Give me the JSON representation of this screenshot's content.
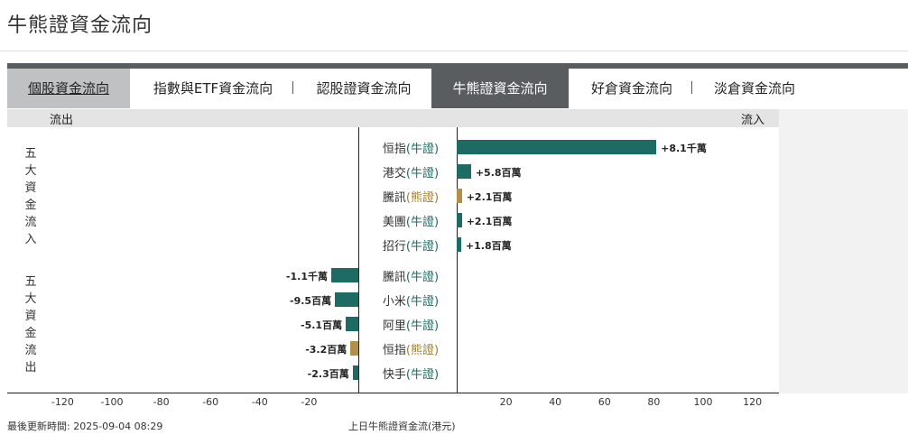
{
  "page": {
    "title": "牛熊證資金流向"
  },
  "tabs": [
    {
      "label": "個股資金流向"
    },
    {
      "label": "指數與ETF資金流向"
    },
    {
      "label": "認股證資金流向"
    },
    {
      "label": "牛熊證資金流向"
    },
    {
      "label": "好倉資金流向"
    },
    {
      "label": "淡倉資金流向"
    }
  ],
  "tab_separator": "|",
  "header": {
    "outflow": "流出",
    "inflow": "流入"
  },
  "groups": {
    "inflow_title": "五大資金流入",
    "outflow_title": "五大資金流出"
  },
  "colors": {
    "bull": "#1d6b62",
    "bear": "#b0904a",
    "tab_active": "#5a5d5f"
  },
  "chart_data": {
    "type": "bar",
    "orientation": "horizontal",
    "unit": "百萬港元",
    "xlim": [
      -130,
      130
    ],
    "x_ticks": [
      -120,
      -100,
      -80,
      -60,
      -40,
      -20,
      20,
      40,
      60,
      80,
      100,
      120
    ],
    "inflow": [
      {
        "name": "恒指",
        "type": "(牛證)",
        "kind": "bull",
        "value": 81,
        "label": "+8.1千萬"
      },
      {
        "name": "港交",
        "type": "(牛證)",
        "kind": "bull",
        "value": 5.8,
        "label": "+5.8百萬"
      },
      {
        "name": "騰訊",
        "type": "(熊證)",
        "kind": "bear",
        "value": 2.1,
        "label": "+2.1百萬"
      },
      {
        "name": "美團",
        "type": "(牛證)",
        "kind": "bull",
        "value": 2.1,
        "label": "+2.1百萬"
      },
      {
        "name": "招行",
        "type": "(牛證)",
        "kind": "bull",
        "value": 1.8,
        "label": "+1.8百萬"
      }
    ],
    "outflow": [
      {
        "name": "騰訊",
        "type": "(牛證)",
        "kind": "bull",
        "value": -11,
        "label": "-1.1千萬"
      },
      {
        "name": "小米",
        "type": "(牛證)",
        "kind": "bull",
        "value": -9.5,
        "label": "-9.5百萬"
      },
      {
        "name": "阿里",
        "type": "(牛證)",
        "kind": "bull",
        "value": -5.1,
        "label": "-5.1百萬"
      },
      {
        "name": "恒指",
        "type": "(熊證)",
        "kind": "bear",
        "value": -3.2,
        "label": "-3.2百萬"
      },
      {
        "name": "快手",
        "type": "(牛證)",
        "kind": "bull",
        "value": -2.3,
        "label": "-2.3百萬"
      }
    ]
  },
  "footer": {
    "updated": "最後更新時間: 2025-09-04 08:29",
    "caption": "上日牛熊證資金流(港元)"
  }
}
